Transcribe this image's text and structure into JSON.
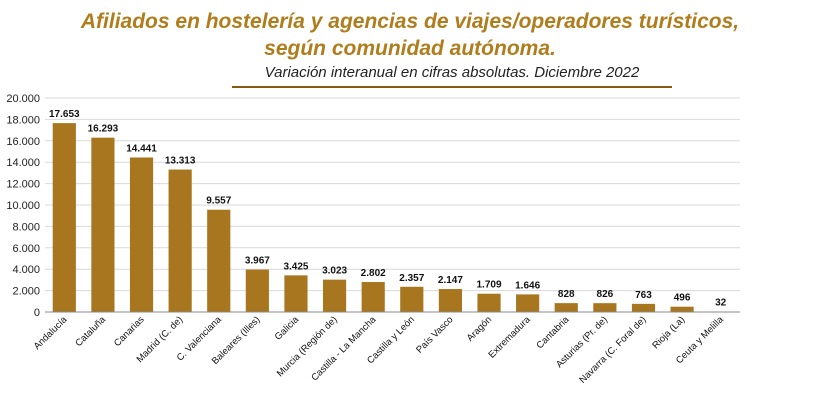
{
  "chart_data": {
    "type": "bar",
    "title": "Afiliados en hostelería y agencias de viajes/operadores turísticos,",
    "title_line2": "según comunidad autónoma.",
    "subtitle": "Variación interanual en cifras absolutas. Diciembre 2022",
    "xlabel": "",
    "ylabel": "",
    "ylim": [
      0,
      20000
    ],
    "yticks": [
      0,
      2000,
      4000,
      6000,
      8000,
      10000,
      12000,
      14000,
      16000,
      18000,
      20000
    ],
    "ytick_labels": [
      "0",
      "2.000",
      "4.000",
      "6.000",
      "8.000",
      "10.000",
      "12.000",
      "14.000",
      "16.000",
      "18.000",
      "20.000"
    ],
    "grid": true,
    "bar_color": "#a8761e",
    "categories": [
      "Andalucía",
      "Cataluña",
      "Canarias",
      "Madrid (C. de)",
      "C. Valenciana",
      "Baleares (Illes)",
      "Galicia",
      "Murcia (Región de)",
      "Castilla - La Mancha",
      "Castilla y León",
      "País Vasco",
      "Aragón",
      "Extremadura",
      "Cantabria",
      "Asturias (Pr. de)",
      "Navarra (C. Foral de)",
      "Rioja (La)",
      "Ceuta y Melilla"
    ],
    "values": [
      17653,
      16293,
      14441,
      13313,
      9557,
      3967,
      3425,
      3023,
      2802,
      2357,
      2147,
      1709,
      1646,
      828,
      826,
      763,
      496,
      32
    ],
    "value_labels": [
      "17.653",
      "16.293",
      "14.441",
      "13.313",
      "9.557",
      "3.967",
      "3.425",
      "3.023",
      "2.802",
      "2.357",
      "2.147",
      "1.709",
      "1.646",
      "828",
      "826",
      "763",
      "496",
      "32"
    ]
  }
}
